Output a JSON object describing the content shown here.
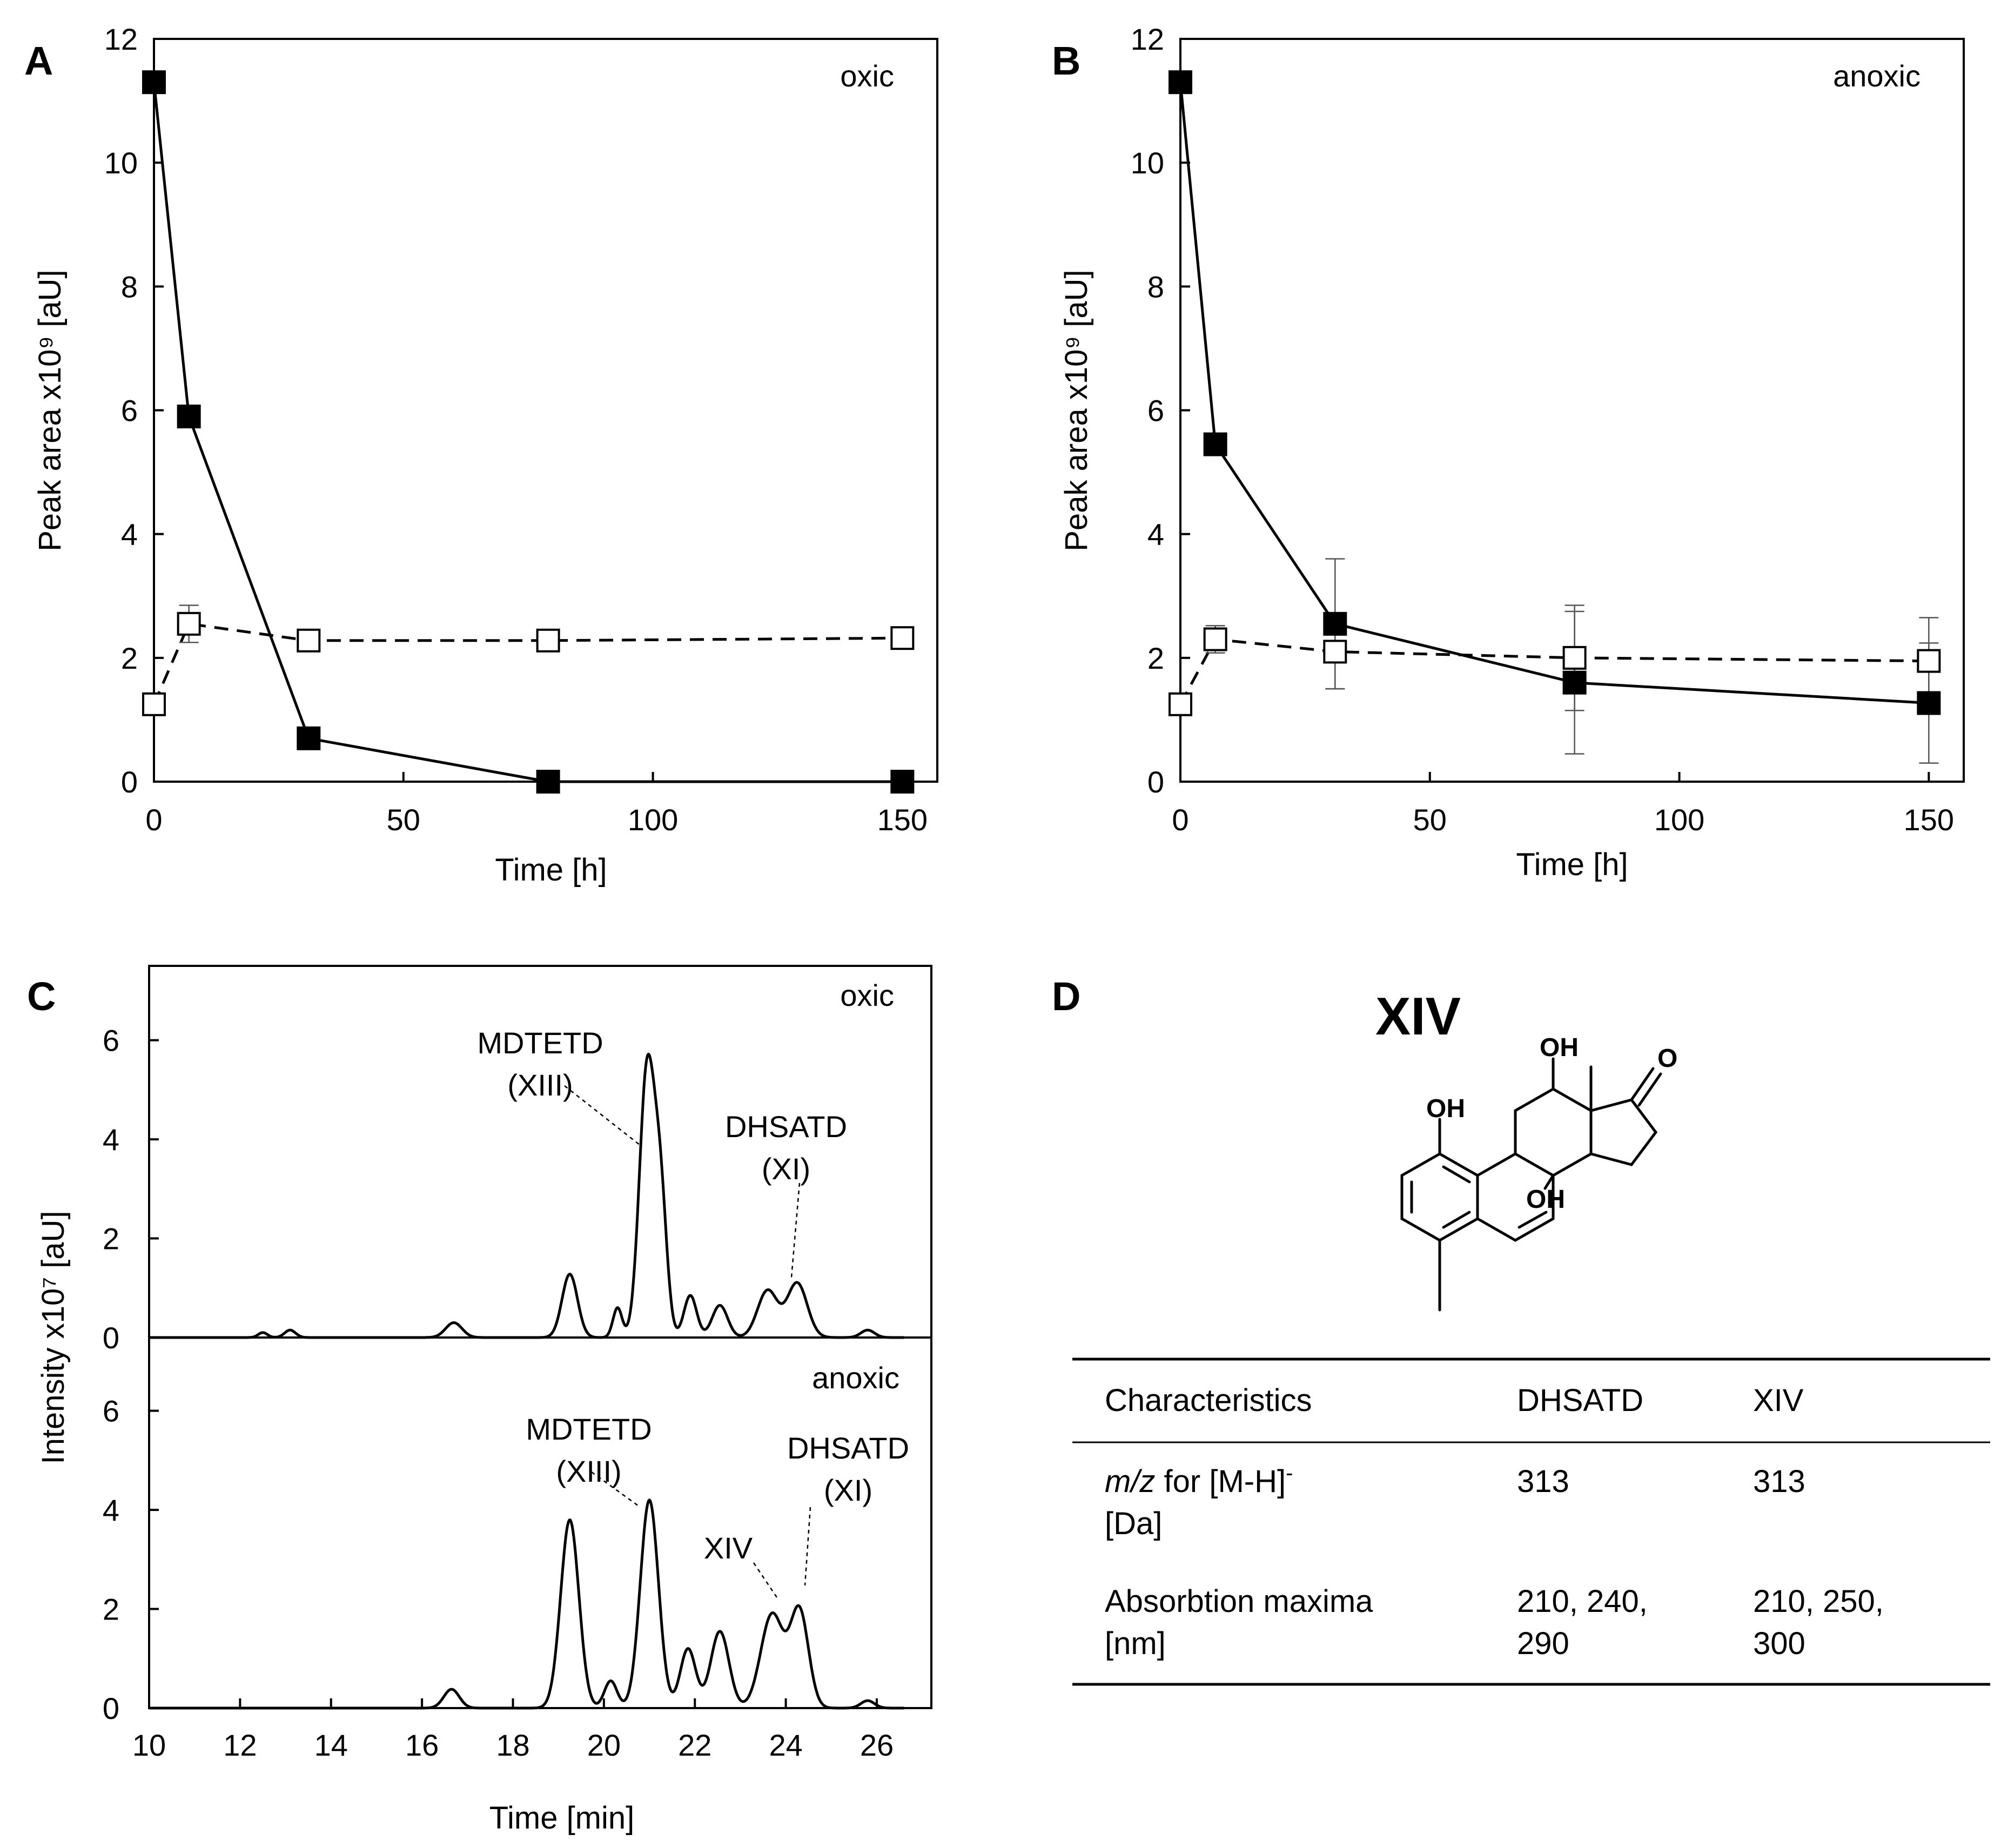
{
  "chart_data": [
    {
      "panel": "A",
      "type": "line",
      "condition": "oxic",
      "xlabel": "Time [h]",
      "ylabel": "Peak area x10⁹ [aU]",
      "xlim": [
        0,
        157
      ],
      "ylim": [
        0,
        12
      ],
      "xticks": [
        0,
        50,
        100,
        150
      ],
      "yticks": [
        0,
        2,
        4,
        6,
        8,
        10,
        12
      ],
      "series": [
        {
          "name": "filled squares (solid line)",
          "marker": "filled-square",
          "line": "solid",
          "x": [
            0,
            7,
            31,
            79,
            150
          ],
          "y": [
            11.3,
            5.9,
            0.7,
            0.0,
            0.0
          ],
          "err": [
            0,
            0,
            0,
            0,
            0
          ]
        },
        {
          "name": "open squares (dashed line)",
          "marker": "open-square",
          "line": "dashed",
          "x": [
            0,
            7,
            31,
            79,
            150
          ],
          "y": [
            1.25,
            2.55,
            2.28,
            2.28,
            2.32
          ],
          "err": [
            0,
            0.3,
            0,
            0,
            0
          ]
        }
      ]
    },
    {
      "panel": "B",
      "type": "line",
      "condition": "anoxic",
      "xlabel": "Time [h]",
      "ylabel": "Peak area x10⁹ [aU]",
      "xlim": [
        0,
        157
      ],
      "ylim": [
        0,
        12
      ],
      "xticks": [
        0,
        50,
        100,
        150
      ],
      "yticks": [
        0,
        2,
        4,
        6,
        8,
        10,
        12
      ],
      "series": [
        {
          "name": "filled squares (solid line)",
          "marker": "filled-square",
          "line": "solid",
          "x": [
            0,
            7,
            31,
            79,
            150
          ],
          "y": [
            11.3,
            5.45,
            2.55,
            1.6,
            1.27
          ],
          "err": [
            0,
            0,
            1.05,
            1.15,
            0.97
          ]
        },
        {
          "name": "open squares (dashed line)",
          "marker": "open-square",
          "line": "dashed",
          "x": [
            0,
            7,
            31,
            79,
            150
          ],
          "y": [
            1.25,
            2.3,
            2.1,
            2.0,
            1.95
          ],
          "err": [
            0,
            0.22,
            0.6,
            0.85,
            0.7
          ]
        }
      ]
    },
    {
      "panel": "C",
      "type": "line",
      "xlabel": "Time [min]",
      "ylabel": "Intensity x10⁷ [aU]",
      "xlim": [
        10,
        27.2
      ],
      "xticks": [
        10,
        12,
        14,
        16,
        18,
        20,
        22,
        24,
        26
      ],
      "subplots": [
        {
          "condition": "oxic",
          "ylim": [
            0,
            7.5
          ],
          "yticks": [
            0,
            2,
            4,
            6
          ],
          "peaks": [
            {
              "center": 12.5,
              "height": 0.1,
              "width": 0.1
            },
            {
              "center": 13.1,
              "height": 0.15,
              "width": 0.12
            },
            {
              "center": 16.7,
              "height": 0.3,
              "width": 0.18
            },
            {
              "center": 19.25,
              "height": 1.28,
              "width": 0.17
            },
            {
              "center": 20.3,
              "height": 0.6,
              "width": 0.1
            },
            {
              "center": 20.95,
              "height": 5.4,
              "width": 0.17
            },
            {
              "center": 21.25,
              "height": 2.6,
              "width": 0.14
            },
            {
              "center": 21.9,
              "height": 0.85,
              "width": 0.14
            },
            {
              "center": 22.55,
              "height": 0.65,
              "width": 0.17
            },
            {
              "center": 23.6,
              "height": 0.95,
              "width": 0.22
            },
            {
              "center": 24.25,
              "height": 1.1,
              "width": 0.22
            },
            {
              "center": 25.8,
              "height": 0.15,
              "width": 0.15
            }
          ],
          "annotations": [
            {
              "lines": [
                "MDTETD",
                "(XIII)"
              ],
              "x": 20.9
            },
            {
              "lines": [
                "DHSATD",
                "(XI)"
              ],
              "x": 24.2
            }
          ]
        },
        {
          "condition": "anoxic",
          "ylim": [
            0,
            7.5
          ],
          "yticks": [
            0,
            2,
            4,
            6
          ],
          "peaks": [
            {
              "center": 16.65,
              "height": 0.38,
              "width": 0.17
            },
            {
              "center": 19.25,
              "height": 3.8,
              "width": 0.2
            },
            {
              "center": 20.15,
              "height": 0.55,
              "width": 0.14
            },
            {
              "center": 21.0,
              "height": 4.2,
              "width": 0.2
            },
            {
              "center": 21.85,
              "height": 1.2,
              "width": 0.17
            },
            {
              "center": 22.55,
              "height": 1.55,
              "width": 0.2
            },
            {
              "center": 23.7,
              "height": 1.9,
              "width": 0.25
            },
            {
              "center": 24.3,
              "height": 1.95,
              "width": 0.2
            },
            {
              "center": 25.8,
              "height": 0.15,
              "width": 0.15
            }
          ],
          "annotations": [
            {
              "lines": [
                "MDTETD",
                "(XIII)"
              ],
              "x": 20.95
            },
            {
              "lines": [
                "XIV"
              ],
              "x": 23.7
            },
            {
              "lines": [
                "DHSATD",
                "(XI)"
              ],
              "x": 24.3
            }
          ]
        }
      ]
    }
  ],
  "panel_letters": [
    "A",
    "B",
    "C",
    "D"
  ],
  "structure": {
    "name": "XIV",
    "labels": {
      "oh1": "OH",
      "oh2": "OH",
      "oh3": "OH",
      "o": "O"
    }
  },
  "table": {
    "headers": [
      "Characteristics",
      "DHSATD",
      "XIV"
    ],
    "rows": [
      {
        "label_italic": "m/z",
        "label_rest": " for [M-H]",
        "label_sup": "-",
        "label_line2": "[Da]",
        "c1": [
          "313"
        ],
        "c2": [
          "313"
        ]
      },
      {
        "label_line1": "Absorbtion maxima",
        "label_line2": "[nm]",
        "c1": [
          "210, 240,",
          "290"
        ],
        "c2": [
          "210, 250,",
          "300"
        ]
      }
    ]
  }
}
